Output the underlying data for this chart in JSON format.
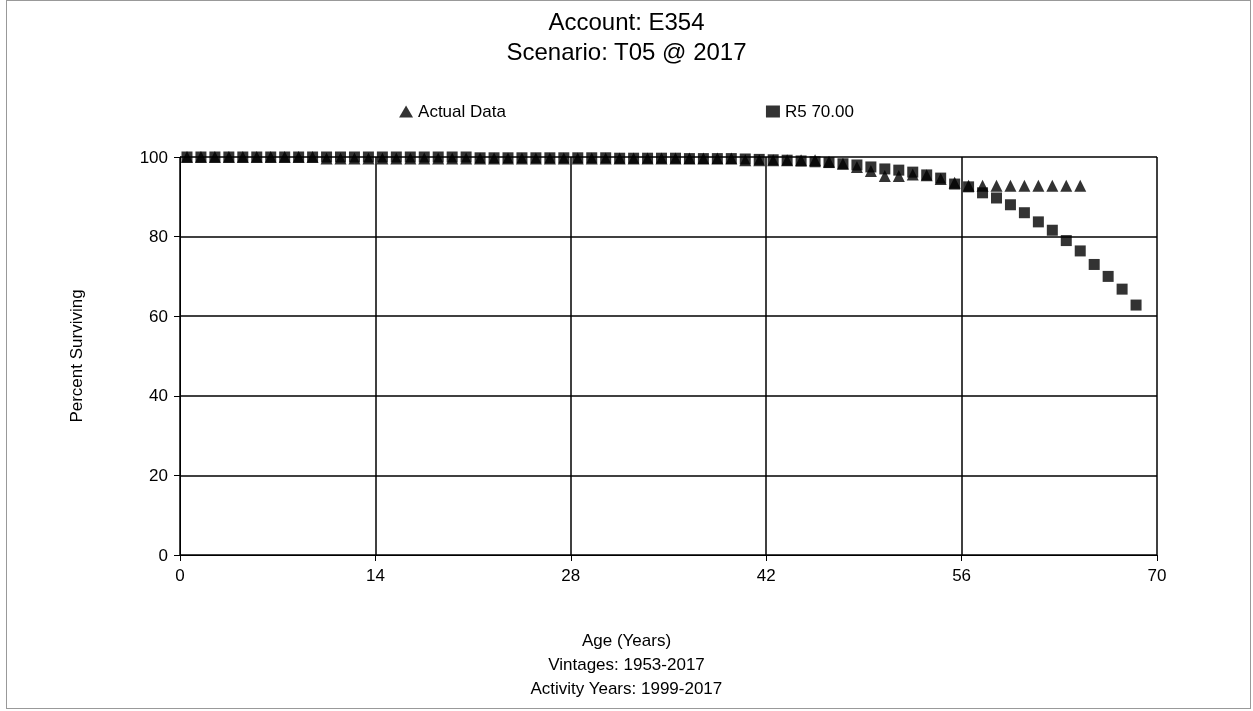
{
  "chart_data": {
    "type": "scatter",
    "title": "Account: E354",
    "subtitle": "Scenario: T05 @ 2017",
    "xlabel": "Age (Years)",
    "ylabel": "Percent Surviving",
    "annotations": [
      "Vintages: 1953-2017",
      "Activity Years: 1999-2017"
    ],
    "xlim": [
      0,
      70
    ],
    "xticks": [
      0,
      14,
      28,
      42,
      56,
      70
    ],
    "ylim": [
      0,
      100
    ],
    "yticks": [
      0,
      20,
      40,
      60,
      80,
      100
    ],
    "grid": true,
    "legend": "top",
    "series": [
      {
        "name": "Actual Data",
        "color": "#000000",
        "marker": "triangle",
        "x": [
          0.5,
          1.5,
          2.5,
          3.5,
          4.5,
          5.5,
          6.5,
          7.5,
          8.5,
          9.5,
          10.5,
          11.5,
          12.5,
          13.5,
          14.5,
          15.5,
          16.5,
          17.5,
          18.5,
          19.5,
          20.5,
          21.5,
          22.5,
          23.5,
          24.5,
          25.5,
          26.5,
          27.5,
          28.5,
          29.5,
          30.5,
          31.5,
          32.5,
          33.5,
          34.5,
          35.5,
          36.5,
          37.5,
          38.5,
          39.5,
          40.5,
          41.5,
          42.5,
          43.5,
          44.5,
          45.5,
          46.5,
          47.5,
          48.5,
          49.5,
          50.5,
          51.5,
          52.5,
          53.5,
          54.5,
          55.5,
          56.5,
          57.5,
          58.5,
          59.5,
          60.5,
          61.5,
          62.5,
          63.5,
          64.5
        ],
        "values": [
          100,
          100,
          100,
          100,
          100,
          100,
          100,
          100,
          100,
          100,
          99.6,
          99.6,
          99.6,
          99.6,
          99.6,
          99.6,
          99.6,
          99.6,
          99.6,
          99.6,
          99.6,
          99.6,
          99.6,
          99.6,
          99.6,
          99.6,
          99.6,
          99.6,
          99.6,
          99.6,
          99.6,
          99.6,
          99.6,
          99.6,
          99.6,
          99.6,
          99.6,
          99.6,
          99.6,
          99.6,
          99.2,
          99.2,
          99.2,
          99.2,
          99.2,
          99.2,
          98.8,
          98.3,
          97.5,
          96.5,
          95.2,
          95.2,
          95.6,
          95.4,
          94.5,
          93.5,
          92.8,
          92.8,
          92.8,
          92.8,
          92.8,
          92.8,
          92.8,
          92.8,
          92.8
        ]
      },
      {
        "name": "R5 70.00",
        "color": "#000000",
        "marker": "square",
        "x": [
          0.5,
          1.5,
          2.5,
          3.5,
          4.5,
          5.5,
          6.5,
          7.5,
          8.5,
          9.5,
          10.5,
          11.5,
          12.5,
          13.5,
          14.5,
          15.5,
          16.5,
          17.5,
          18.5,
          19.5,
          20.5,
          21.5,
          22.5,
          23.5,
          24.5,
          25.5,
          26.5,
          27.5,
          28.5,
          29.5,
          30.5,
          31.5,
          32.5,
          33.5,
          34.5,
          35.5,
          36.5,
          37.5,
          38.5,
          39.5,
          40.5,
          41.5,
          42.5,
          43.5,
          44.5,
          45.5,
          46.5,
          47.5,
          48.5,
          49.5,
          50.5,
          51.5,
          52.5,
          53.5,
          54.5,
          55.5,
          56.5,
          57.5,
          58.5,
          59.5,
          60.5,
          61.5,
          62.5,
          63.5,
          64.5,
          65.5,
          66.5,
          67.5,
          68.5
        ],
        "values": [
          100,
          100,
          100,
          100,
          100,
          100,
          100,
          100,
          100,
          100,
          100,
          100,
          100,
          100,
          100,
          100,
          100,
          100,
          100,
          100,
          100,
          99.8,
          99.8,
          99.8,
          99.8,
          99.8,
          99.8,
          99.8,
          99.8,
          99.8,
          99.8,
          99.7,
          99.7,
          99.7,
          99.7,
          99.7,
          99.6,
          99.6,
          99.6,
          99.6,
          99.5,
          99.4,
          99.3,
          99.2,
          99,
          98.8,
          98.6,
          98.3,
          98,
          97.5,
          97,
          96.7,
          96.2,
          95.5,
          94.7,
          93.2,
          92.5,
          91,
          89.7,
          88,
          86,
          83.7,
          81.6,
          79,
          76.4,
          73,
          70,
          66.8,
          62.8
        ]
      }
    ]
  }
}
